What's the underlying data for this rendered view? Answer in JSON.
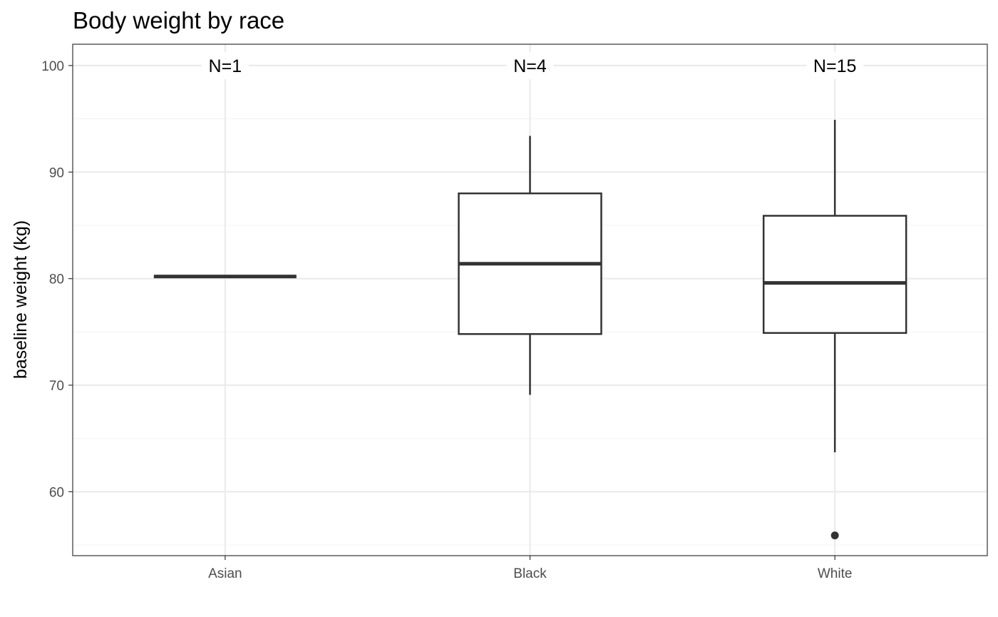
{
  "chart_data": {
    "type": "boxplot",
    "title": "Body weight by race",
    "xlabel": "",
    "ylabel": "baseline weight (kg)",
    "ylim": [
      54,
      102
    ],
    "yticks": [
      60,
      70,
      80,
      90,
      100
    ],
    "grid": true,
    "categories": [
      "Asian",
      "Black",
      "White"
    ],
    "boxes": [
      {
        "category": "Asian",
        "min": 80.2,
        "q1": 80.2,
        "median": 80.2,
        "q3": 80.2,
        "max": 80.2,
        "outliers": [],
        "n_label": "N=1"
      },
      {
        "category": "Black",
        "min": 69.1,
        "q1": 74.8,
        "median": 81.4,
        "q3": 88.0,
        "max": 93.4,
        "outliers": [],
        "n_label": "N=4"
      },
      {
        "category": "White",
        "min": 63.7,
        "q1": 74.9,
        "median": 79.6,
        "q3": 85.9,
        "max": 94.9,
        "outliers": [
          55.9
        ],
        "n_label": "N=15"
      }
    ],
    "colors": {
      "box_stroke": "#333333",
      "grid_major": "#ebebeb",
      "grid_minor": "#f4f4f4",
      "panel_border": "#333333"
    }
  }
}
